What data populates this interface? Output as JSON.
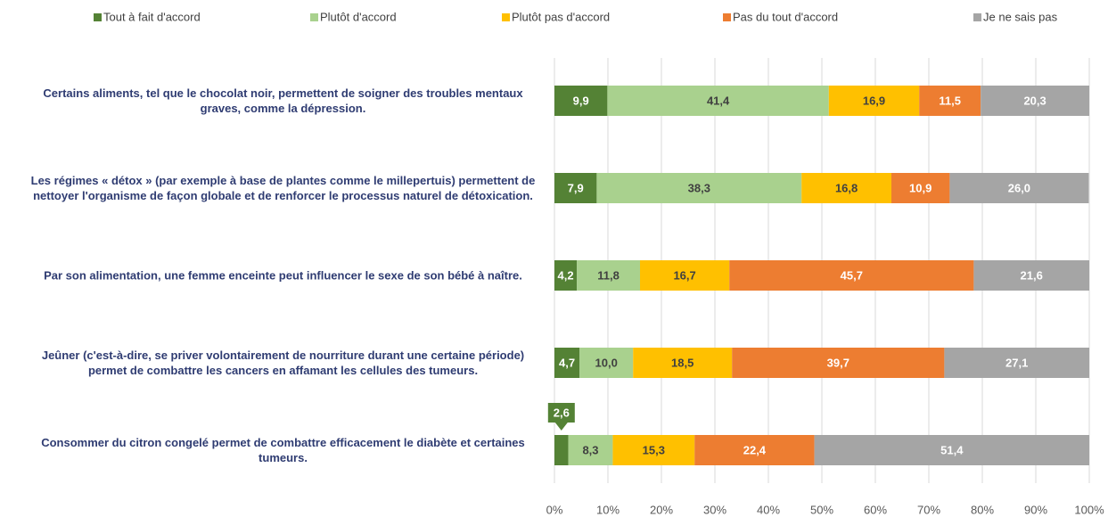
{
  "chart_data": {
    "type": "stacked_barh",
    "categories": [
      "Certains aliments, tel que le chocolat noir, permettent de soigner des troubles mentaux graves, comme la dépression.",
      "Les régimes « détox » (par exemple à base de plantes comme le millepertuis) permettent de nettoyer l'organisme de façon globale et de renforcer le processus naturel de détoxication.",
      "Par son alimentation, une femme enceinte peut influencer le sexe de son bébé à naître.",
      "Jeûner (c'est-à-dire, se priver volontairement de nourriture durant une certaine période) permet de combattre les cancers en affamant les cellules des tumeurs.",
      "Consommer du citron congelé permet de combattre efficacement le diabète et certaines tumeurs."
    ],
    "series": [
      {
        "name": "Tout à fait d'accord",
        "color": "#548235",
        "values": [
          9.9,
          7.9,
          4.2,
          4.7,
          2.6
        ],
        "value_labels": [
          "9,9",
          "7,9",
          "4,2",
          "4,7",
          "2,6"
        ]
      },
      {
        "name": "Plutôt d'accord",
        "color": "#a9d18e",
        "values": [
          41.4,
          38.3,
          11.8,
          10.0,
          8.3
        ],
        "value_labels": [
          "41,4",
          "38,3",
          "11,8",
          "10,0",
          "8,3"
        ]
      },
      {
        "name": "Plutôt pas d'accord",
        "color": "#ffc000",
        "values": [
          16.9,
          16.8,
          16.7,
          18.5,
          15.3
        ],
        "value_labels": [
          "16,9",
          "16,8",
          "16,7",
          "18,5",
          "15,3"
        ]
      },
      {
        "name": "Pas du tout d'accord",
        "color": "#ed7d31",
        "values": [
          11.5,
          10.9,
          45.7,
          39.7,
          22.4
        ],
        "value_labels": [
          "11,5",
          "10,9",
          "45,7",
          "39,7",
          "22,4"
        ]
      },
      {
        "name": "Je ne sais pas",
        "color": "#a5a5a5",
        "values": [
          20.3,
          26.0,
          21.6,
          27.1,
          51.4
        ],
        "value_labels": [
          "20,3",
          "26,0",
          "21,6",
          "27,1",
          "51,4"
        ]
      }
    ],
    "xlim": [
      0,
      100
    ],
    "xticks": [
      {
        "value": 0,
        "label": "0%"
      },
      {
        "value": 10,
        "label": "10%"
      },
      {
        "value": 20,
        "label": "20%"
      },
      {
        "value": 30,
        "label": "30%"
      },
      {
        "value": 40,
        "label": "40%"
      },
      {
        "value": 50,
        "label": "50%"
      },
      {
        "value": 60,
        "label": "60%"
      },
      {
        "value": 70,
        "label": "70%"
      },
      {
        "value": 80,
        "label": "80%"
      },
      {
        "value": 90,
        "label": "90%"
      },
      {
        "value": 100,
        "label": "100%"
      }
    ],
    "grid": true,
    "legend": "top"
  }
}
